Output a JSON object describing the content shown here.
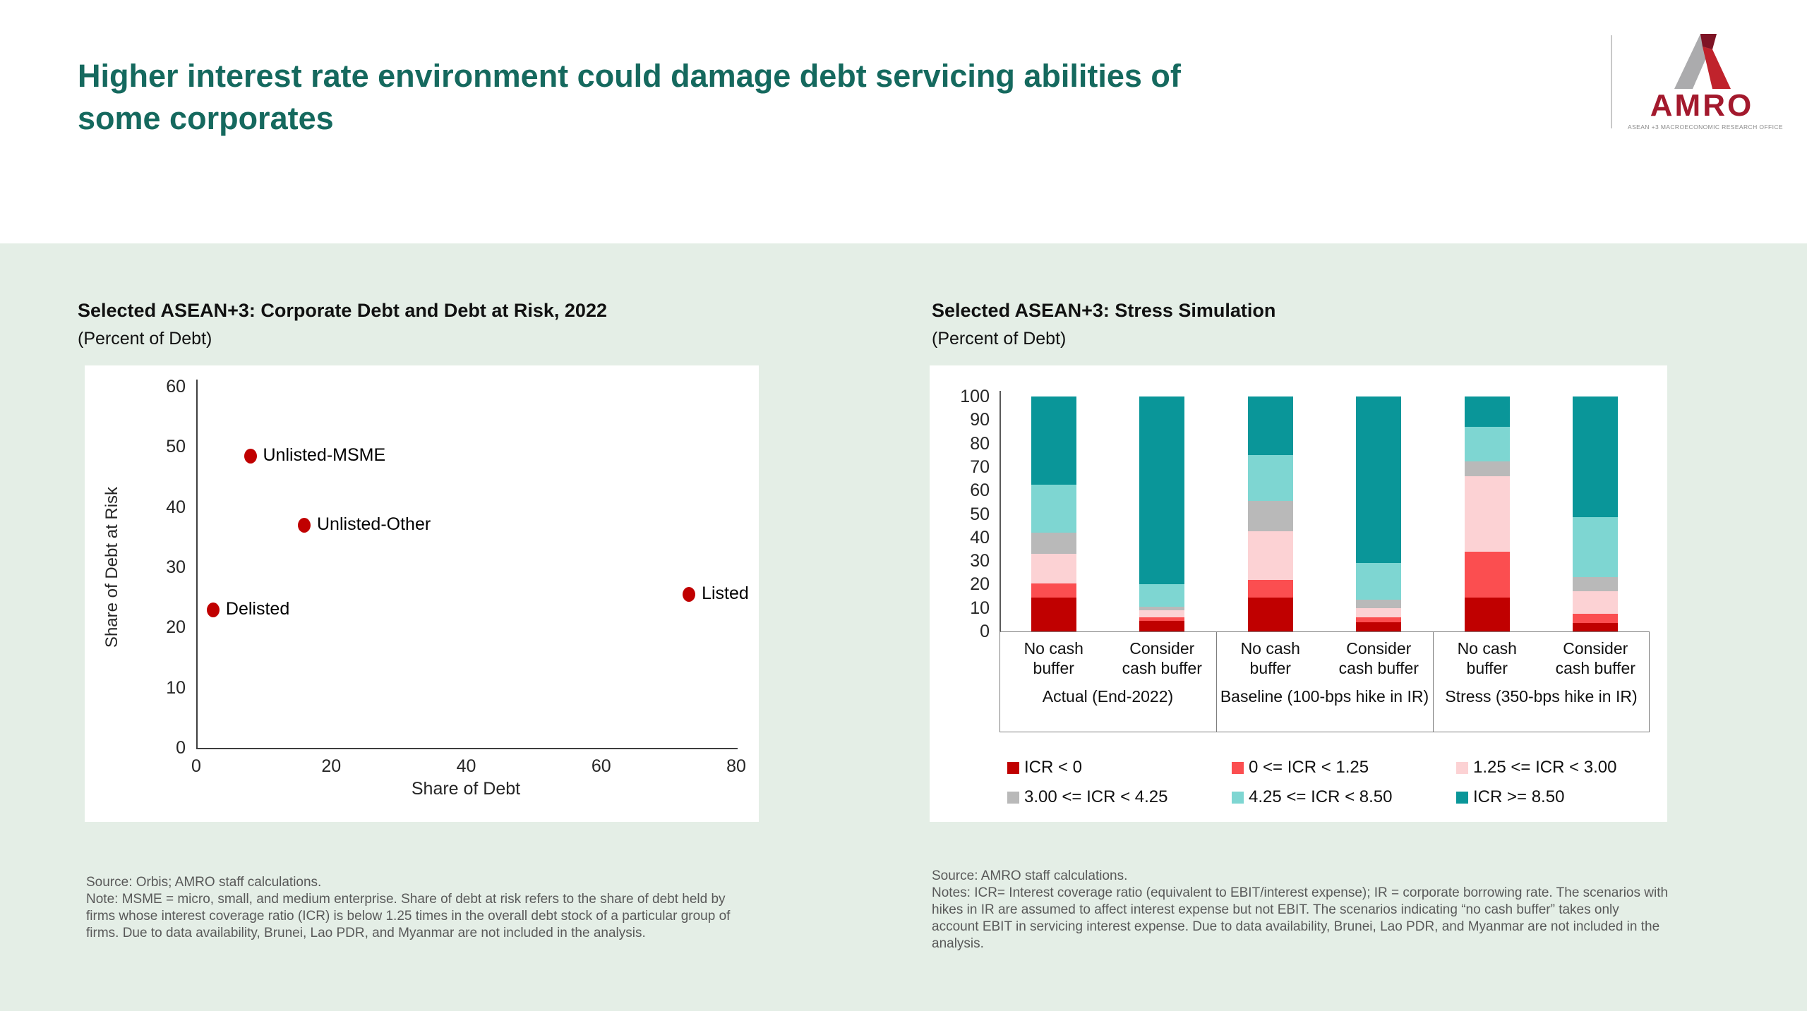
{
  "theme": {
    "band_background": "#E4EEE6",
    "title_color": "#15695E",
    "point_color": "#C00000",
    "logo_red": "#A3192D",
    "logo_gray": "#ABABAD"
  },
  "header": {
    "title_line1": "Higher interest rate environment could damage debt servicing abilities of",
    "title_line2": "some corporates",
    "logo": {
      "wordmark": "AMRO",
      "tagline": "ASEAN +3 MACROECONOMIC RESEARCH OFFICE"
    }
  },
  "left_chart": {
    "source": "Source: Orbis; AMRO staff calculations.",
    "note": "Note: MSME = micro, small, and medium enterprise. Share of debt at risk refers to the share of debt held by firms whose interest coverage ratio (ICR) is below 1.25 times in the overall debt stock of a particular group of firms. Due to data availability, Brunei, Lao PDR, and Myanmar are not included in the analysis."
  },
  "right_chart": {
    "source": "Source: AMRO staff calculations.",
    "note": "Notes: ICR= Interest coverage ratio (equivalent to EBIT/interest expense); IR = corporate borrowing rate. The scenarios with hikes in IR are assumed to affect interest expense but not EBIT. The scenarios indicating “no cash buffer” takes only account EBIT in servicing interest expense. Due to data availability, Brunei, Lao PDR, and Myanmar are not included in the analysis."
  },
  "chart_data": [
    {
      "type": "scatter",
      "title": "Selected ASEAN+3: Corporate Debt and Debt at Risk, 2022",
      "subtitle": "(Percent of Debt)",
      "xlabel": "Share of Debt",
      "ylabel": "Share of Debt at Risk",
      "xlim": [
        0,
        80
      ],
      "ylim": [
        0,
        60
      ],
      "x_ticks": [
        0,
        20,
        40,
        60,
        80
      ],
      "y_ticks": [
        0,
        10,
        20,
        30,
        40,
        50,
        60
      ],
      "grid": false,
      "point_color": "#C00000",
      "points": [
        {
          "label": "Unlisted-MSME",
          "x": 8,
          "y": 48.5
        },
        {
          "label": "Unlisted-Other",
          "x": 16,
          "y": 37
        },
        {
          "label": "Delisted",
          "x": 2.5,
          "y": 23
        },
        {
          "label": "Listed",
          "x": 73,
          "y": 25.5
        }
      ]
    },
    {
      "type": "bar",
      "stacked": true,
      "title": "Selected ASEAN+3: Stress Simulation",
      "subtitle": "(Percent of Debt)",
      "ylim": [
        0,
        100
      ],
      "y_ticks": [
        0,
        10,
        20,
        30,
        40,
        50,
        60,
        70,
        80,
        90,
        100
      ],
      "grid": false,
      "legend_position": "bottom",
      "categories": [
        "No cash buffer",
        "Consider cash buffer",
        "No cash buffer",
        "Consider cash buffer",
        "No cash buffer",
        "Consider cash buffer"
      ],
      "group_labels": [
        "Actual (End-2022)",
        "Baseline (100-bps hike in IR)",
        "Stress (350-bps hike in IR)"
      ],
      "series": [
        {
          "name": "ICR < 0",
          "color": "#C00000",
          "values": [
            14.5,
            4.5,
            14.5,
            4.0,
            14.5,
            3.5
          ]
        },
        {
          "name": "0 <= ICR < 1.25",
          "color": "#FB4E50",
          "values": [
            6.0,
            1.5,
            7.5,
            2.0,
            19.5,
            4.0
          ]
        },
        {
          "name": "1.25 <= ICR < 3.00",
          "color": "#FCD2D4",
          "values": [
            12.5,
            3.0,
            20.5,
            4.0,
            32.0,
            9.5
          ]
        },
        {
          "name": "3.00 <= ICR < 4.25",
          "color": "#B9B9B9",
          "values": [
            9.0,
            1.5,
            13.0,
            3.5,
            6.5,
            6.0
          ]
        },
        {
          "name": "4.25 <= ICR < 8.50",
          "color": "#7ED6D2",
          "values": [
            20.5,
            9.5,
            19.5,
            15.5,
            14.5,
            25.5
          ]
        },
        {
          "name": "ICR >= 8.50",
          "color": "#0A9699",
          "values": [
            37.5,
            80.0,
            25.0,
            71.0,
            13.0,
            51.5
          ]
        }
      ]
    }
  ]
}
